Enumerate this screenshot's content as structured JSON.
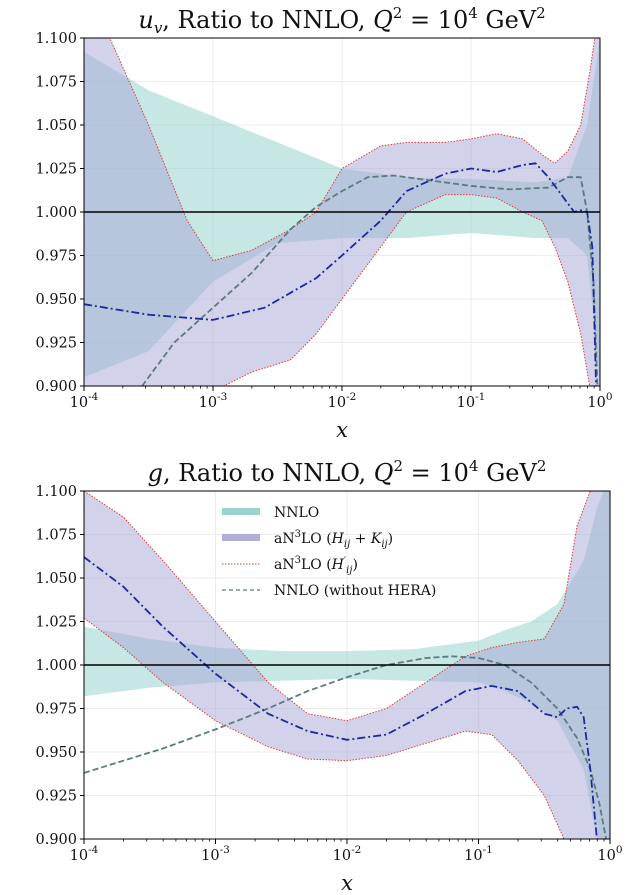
{
  "chart_data": [
    {
      "type": "line",
      "title": "u_v, Ratio to NNLO, Q^2 = 10^4 GeV^2",
      "title_parts": {
        "var": "u",
        "sub": "v",
        "mid": ", Ratio to NNLO, ",
        "q": "Q",
        "eq": " = 10",
        "exp": "4",
        "unit": " GeV",
        "unit_exp": "2"
      },
      "xlabel": "x",
      "xscale": "log",
      "xlim": [
        0.0001,
        1.0
      ],
      "ylim": [
        0.9,
        1.1
      ],
      "yticks": [
        "0.900",
        "0.925",
        "0.950",
        "0.975",
        "1.000",
        "1.025",
        "1.050",
        "1.075",
        "1.100"
      ],
      "xticks": [
        {
          "base": "10",
          "exp": "-4"
        },
        {
          "base": "10",
          "exp": "-3"
        },
        {
          "base": "10",
          "exp": "-2"
        },
        {
          "base": "10",
          "exp": "-1"
        },
        {
          "base": "10",
          "exp": "0"
        }
      ],
      "grid": true,
      "colors": {
        "nnlo": "#8ecfc7",
        "an3lo": "#a8a5d8",
        "hp": "#e03a3a",
        "central_an3lo": "#1a2a9a",
        "nohera": "#5a7a80"
      },
      "series": [
        {
          "key": "nnlo_band",
          "x": [
            -4,
            -3.5,
            -3,
            -2.5,
            -2,
            -1.5,
            -1,
            -0.5,
            -0.25,
            -0.1,
            0
          ],
          "upper": [
            1.092,
            1.07,
            1.055,
            1.04,
            1.025,
            1.02,
            1.019,
            1.017,
            1.02,
            1.05,
            1.1
          ],
          "lower": [
            0.905,
            0.92,
            0.96,
            0.982,
            0.985,
            0.985,
            0.988,
            0.985,
            0.985,
            0.975,
            0.9
          ]
        },
        {
          "key": "an3lo_band",
          "x": [
            -4,
            -3.8,
            -3.5,
            -3.2,
            -3,
            -2.7,
            -2.4,
            -2.2,
            -2,
            -1.7,
            -1.5,
            -1.2,
            -1,
            -0.8,
            -0.6,
            -0.45,
            -0.35,
            -0.25,
            -0.15,
            -0.08,
            -0.04,
            0
          ],
          "upper": [
            1.12,
            1.1,
            1.05,
            0.995,
            0.972,
            0.978,
            0.99,
            1.0,
            1.025,
            1.038,
            1.04,
            1.04,
            1.042,
            1.045,
            1.042,
            1.033,
            1.028,
            1.035,
            1.05,
            1.08,
            1.1,
            1.1
          ],
          "lower": [
            0.88,
            0.885,
            0.89,
            0.893,
            0.897,
            0.908,
            0.915,
            0.93,
            0.95,
            0.98,
            1.0,
            1.01,
            1.01,
            1.008,
            1.0,
            0.995,
            0.98,
            0.96,
            0.93,
            0.9,
            0.88,
            0.88
          ]
        },
        {
          "key": "an3lo_central",
          "x": [
            -4,
            -3.5,
            -3,
            -2.6,
            -2.2,
            -2,
            -1.7,
            -1.5,
            -1.2,
            -1,
            -0.8,
            -0.6,
            -0.5,
            -0.4,
            -0.3,
            -0.2,
            -0.15,
            -0.1,
            -0.06,
            -0.03
          ],
          "y": [
            0.947,
            0.941,
            0.938,
            0.945,
            0.962,
            0.975,
            0.995,
            1.012,
            1.022,
            1.025,
            1.023,
            1.027,
            1.028,
            1.02,
            1.01,
            1.0,
            1.001,
            1.0,
            0.98,
            0.9
          ]
        },
        {
          "key": "nnlo_nohera",
          "x": [
            -3.55,
            -3.3,
            -3,
            -2.7,
            -2.4,
            -2.2,
            -2,
            -1.8,
            -1.6,
            -1.3,
            -1,
            -0.7,
            -0.4,
            -0.25,
            -0.15,
            -0.1,
            -0.05,
            -0.02
          ],
          "y": [
            0.9,
            0.925,
            0.945,
            0.965,
            0.99,
            1.003,
            1.012,
            1.02,
            1.021,
            1.018,
            1.015,
            1.013,
            1.014,
            1.02,
            1.02,
            1.0,
            0.96,
            0.9
          ]
        }
      ]
    },
    {
      "type": "line",
      "title": "g, Ratio to NNLO, Q^2 = 10^4 GeV^2",
      "title_parts": {
        "var": "g",
        "sub": "",
        "mid": ", Ratio to NNLO, ",
        "q": "Q",
        "eq": " = 10",
        "exp": "4",
        "unit": " GeV",
        "unit_exp": "2"
      },
      "xlabel": "x",
      "xscale": "log",
      "xlim": [
        0.0001,
        1.0
      ],
      "ylim": [
        0.9,
        1.1
      ],
      "yticks": [
        "0.900",
        "0.925",
        "0.950",
        "0.975",
        "1.000",
        "1.025",
        "1.050",
        "1.075",
        "1.100"
      ],
      "xticks": [
        {
          "base": "10",
          "exp": "-4"
        },
        {
          "base": "10",
          "exp": "-3"
        },
        {
          "base": "10",
          "exp": "-2"
        },
        {
          "base": "10",
          "exp": "-1"
        },
        {
          "base": "10",
          "exp": "0"
        }
      ],
      "grid": true,
      "legend": {
        "position": "top-center",
        "entries": [
          {
            "key": "nnlo_band",
            "label": "NNLO",
            "style": "band-nnlo"
          },
          {
            "key": "an3lo_band",
            "label": "aN³LO (H_ij + K_ij)",
            "style": "band-an3lo"
          },
          {
            "key": "hp",
            "label": "aN³LO (H′_ij)",
            "style": "dotted-red"
          },
          {
            "key": "nnlo_nohera",
            "label": "NNLO (without HERA)",
            "style": "dashed-grey"
          }
        ]
      },
      "series": [
        {
          "key": "nnlo_band",
          "x": [
            -4,
            -3.5,
            -3,
            -2.5,
            -2,
            -1.5,
            -1,
            -0.8,
            -0.6,
            -0.4,
            -0.2,
            -0.1,
            -0.05,
            0
          ],
          "upper": [
            1.022,
            1.015,
            1.01,
            1.008,
            1.008,
            1.009,
            1.014,
            1.02,
            1.025,
            1.035,
            1.06,
            1.09,
            1.1,
            1.1
          ],
          "lower": [
            0.982,
            0.987,
            0.99,
            0.991,
            0.992,
            0.991,
            0.99,
            0.985,
            0.978,
            0.968,
            0.94,
            0.9,
            0.88,
            0.88
          ]
        },
        {
          "key": "an3lo_band",
          "x": [
            -4,
            -3.7,
            -3.4,
            -3,
            -2.6,
            -2.3,
            -2,
            -1.7,
            -1.4,
            -1.1,
            -0.9,
            -0.7,
            -0.5,
            -0.35,
            -0.25,
            -0.15,
            -0.05,
            0
          ],
          "upper": [
            1.1,
            1.085,
            1.06,
            1.025,
            0.99,
            0.972,
            0.968,
            0.975,
            0.99,
            1.005,
            1.01,
            1.013,
            1.015,
            1.035,
            1.08,
            1.1,
            1.1,
            1.1
          ],
          "lower": [
            1.027,
            1.01,
            0.99,
            0.968,
            0.953,
            0.946,
            0.945,
            0.948,
            0.955,
            0.962,
            0.96,
            0.945,
            0.925,
            0.9,
            0.88,
            0.88,
            0.88,
            0.88
          ]
        },
        {
          "key": "an3lo_central",
          "x": [
            -4,
            -3.7,
            -3.4,
            -3,
            -2.6,
            -2.3,
            -2,
            -1.7,
            -1.4,
            -1.1,
            -0.9,
            -0.7,
            -0.5,
            -0.4,
            -0.33,
            -0.25,
            -0.2,
            -0.15,
            -0.1
          ],
          "y": [
            1.062,
            1.045,
            1.022,
            0.995,
            0.972,
            0.962,
            0.957,
            0.96,
            0.972,
            0.985,
            0.988,
            0.985,
            0.972,
            0.97,
            0.975,
            0.976,
            0.97,
            0.94,
            0.9
          ]
        },
        {
          "key": "nnlo_nohera",
          "x": [
            -4,
            -3.7,
            -3.4,
            -3,
            -2.6,
            -2.3,
            -2,
            -1.7,
            -1.4,
            -1.2,
            -1,
            -0.8,
            -0.6,
            -0.4,
            -0.25,
            -0.15,
            -0.08,
            -0.03
          ],
          "y": [
            0.938,
            0.945,
            0.952,
            0.963,
            0.975,
            0.985,
            0.993,
            1.0,
            1.004,
            1.005,
            1.004,
            1.0,
            0.99,
            0.975,
            0.958,
            0.94,
            0.92,
            0.9
          ]
        }
      ]
    }
  ]
}
